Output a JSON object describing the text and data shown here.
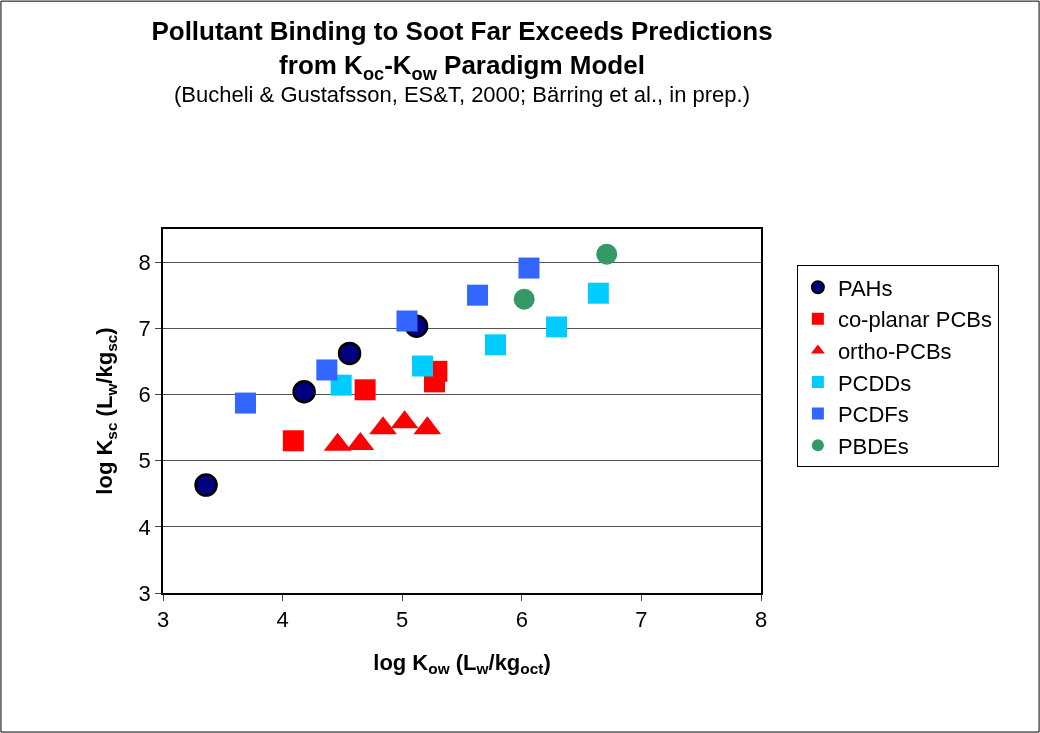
{
  "chart_data": {
    "type": "scatter",
    "title": "Pollutant Binding to Soot Far Exceeds Predictions\nfrom K$_{oc}$-K$_{ow}$ Paradigm Model",
    "subtitle": "(Bucheli & Gustafsson, ES&T, 2000; Bärring et al., in prep.)",
    "xlabel": "log K$_{ow}$ (L$_{w}$/kg$_{oct}$)",
    "ylabel": "log K$_{sc}$ (L$_{w}$/kg$_{sc}$)",
    "xlim": [
      3,
      8
    ],
    "xticks": [
      3,
      4,
      5,
      6,
      7,
      8
    ],
    "ylim": [
      3,
      8.5
    ],
    "yticks": [
      3,
      4,
      5,
      6,
      7,
      8
    ],
    "grid": "y",
    "legend": "right",
    "series": [
      {
        "name": "PAHs",
        "color": "#000080",
        "marker": "circle",
        "x": [
          3.36,
          4.18,
          4.56,
          5.12
        ],
        "values": [
          4.63,
          6.04,
          6.62,
          7.03
        ]
      },
      {
        "name": "co-planar PCBs",
        "color": "#ff0000",
        "marker": "square",
        "x": [
          4.09,
          4.69,
          5.29,
          5.27
        ],
        "values": [
          5.3,
          6.07,
          6.35,
          6.19
        ]
      },
      {
        "name": "ortho-PCBs",
        "color": "#ff0000",
        "marker": "triangle",
        "x": [
          4.46,
          4.65,
          4.84,
          5.02,
          5.21
        ],
        "values": [
          5.24,
          5.25,
          5.49,
          5.58,
          5.49
        ]
      },
      {
        "name": "PCDDs",
        "color": "#00ccff",
        "marker": "square",
        "x": [
          4.49,
          5.17,
          5.78,
          6.29,
          6.64
        ],
        "values": [
          6.14,
          6.43,
          6.75,
          7.02,
          7.53
        ]
      },
      {
        "name": "PCDFs",
        "color": "#3366ff",
        "marker": "square",
        "x": [
          3.69,
          4.37,
          5.04,
          5.63,
          6.06
        ],
        "values": [
          5.87,
          6.37,
          7.11,
          7.5,
          7.91
        ]
      },
      {
        "name": "PBDEs",
        "color": "#339966",
        "marker": "circle",
        "x": [
          6.02,
          6.71
        ],
        "values": [
          7.44,
          8.12
        ]
      }
    ]
  }
}
